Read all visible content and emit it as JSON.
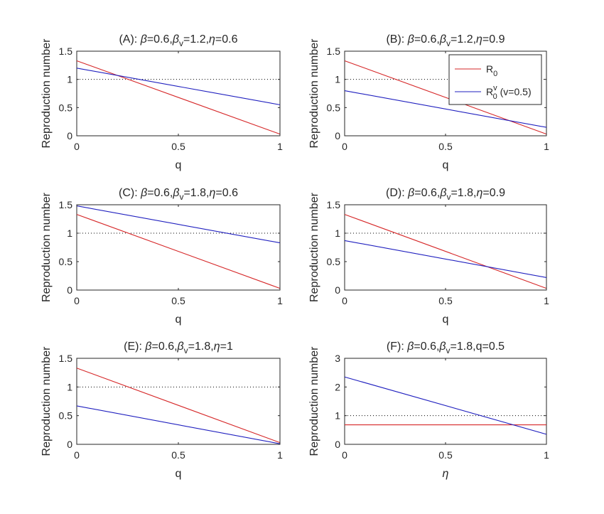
{
  "chart_data": [
    {
      "id": "A",
      "type": "line",
      "title": "(A): β=0.6,β_v=1.2,η=0.6",
      "title_parts": {
        "prefix": "(A): ",
        "beta": "0.6",
        "beta_v": "1.2",
        "last_sym": "η",
        "last_val": "0.6"
      },
      "xlabel": "q",
      "ylabel": "Reproduction number",
      "xlim": [
        0,
        1
      ],
      "ylim": [
        0,
        1.5
      ],
      "xticks": [
        "0",
        "0.5",
        "1"
      ],
      "yticks": [
        "0",
        "0.5",
        "1",
        "1.5"
      ],
      "threshold": 1,
      "series": [
        {
          "name": "R0",
          "color": "#d62728",
          "x": [
            0,
            1
          ],
          "y": [
            1.33,
            0.03
          ]
        },
        {
          "name": "R0v",
          "color": "#1f1fbf",
          "x": [
            0,
            1
          ],
          "y": [
            1.2,
            0.55
          ]
        }
      ]
    },
    {
      "id": "B",
      "type": "line",
      "title": "(B): β=0.6,β_v=1.2,η=0.9",
      "title_parts": {
        "prefix": "(B): ",
        "beta": "0.6",
        "beta_v": "1.2",
        "last_sym": "η",
        "last_val": "0.9"
      },
      "xlabel": "q",
      "ylabel": "Reproduction number",
      "xlim": [
        0,
        1
      ],
      "ylim": [
        0,
        1.5
      ],
      "xticks": [
        "0",
        "0.5",
        "1"
      ],
      "yticks": [
        "0",
        "0.5",
        "1",
        "1.5"
      ],
      "threshold": 1,
      "legend": {
        "placement": "top-right",
        "entries": [
          {
            "main": "R",
            "sub": "0",
            "sup": "",
            "suffix": ""
          },
          {
            "main": "R",
            "sub": "0",
            "sup": "v",
            "suffix": " (v=0.5)"
          }
        ]
      },
      "series": [
        {
          "name": "R0",
          "color": "#d62728",
          "x": [
            0,
            1
          ],
          "y": [
            1.33,
            0.03
          ]
        },
        {
          "name": "R0v",
          "color": "#1f1fbf",
          "x": [
            0,
            1
          ],
          "y": [
            0.8,
            0.15
          ]
        }
      ]
    },
    {
      "id": "C",
      "type": "line",
      "title": "(C): β=0.6,β_v=1.8,η=0.6",
      "title_parts": {
        "prefix": "(C): ",
        "beta": "0.6",
        "beta_v": "1.8",
        "last_sym": "η",
        "last_val": "0.6"
      },
      "xlabel": "q",
      "ylabel": "Reproduction number",
      "xlim": [
        0,
        1
      ],
      "ylim": [
        0,
        1.5
      ],
      "xticks": [
        "0",
        "0.5",
        "1"
      ],
      "yticks": [
        "0",
        "0.5",
        "1",
        "1.5"
      ],
      "threshold": 1,
      "series": [
        {
          "name": "R0",
          "color": "#d62728",
          "x": [
            0,
            1
          ],
          "y": [
            1.33,
            0.03
          ]
        },
        {
          "name": "R0v",
          "color": "#1f1fbf",
          "x": [
            0,
            1
          ],
          "y": [
            1.48,
            0.83
          ]
        }
      ]
    },
    {
      "id": "D",
      "type": "line",
      "title": "(D): β=0.6,β_v=1.8,η=0.9",
      "title_parts": {
        "prefix": "(D): ",
        "beta": "0.6",
        "beta_v": "1.8",
        "last_sym": "η",
        "last_val": "0.9"
      },
      "xlabel": "q",
      "ylabel": "Reproduction number",
      "xlim": [
        0,
        1
      ],
      "ylim": [
        0,
        1.5
      ],
      "xticks": [
        "0",
        "0.5",
        "1"
      ],
      "yticks": [
        "0",
        "0.5",
        "1",
        "1.5"
      ],
      "threshold": 1,
      "series": [
        {
          "name": "R0",
          "color": "#d62728",
          "x": [
            0,
            1
          ],
          "y": [
            1.33,
            0.03
          ]
        },
        {
          "name": "R0v",
          "color": "#1f1fbf",
          "x": [
            0,
            1
          ],
          "y": [
            0.87,
            0.22
          ]
        }
      ]
    },
    {
      "id": "E",
      "type": "line",
      "title": "(E): β=0.6,β_v=1.8,η=1",
      "title_parts": {
        "prefix": "(E): ",
        "beta": "0.6",
        "beta_v": "1.8",
        "last_sym": "η",
        "last_val": "1"
      },
      "xlabel": "q",
      "ylabel": "Reproduction number",
      "xlim": [
        0,
        1
      ],
      "ylim": [
        0,
        1.5
      ],
      "xticks": [
        "0",
        "0.5",
        "1"
      ],
      "yticks": [
        "0",
        "0.5",
        "1",
        "1.5"
      ],
      "threshold": 1,
      "series": [
        {
          "name": "R0",
          "color": "#d62728",
          "x": [
            0,
            1
          ],
          "y": [
            1.33,
            0.03
          ]
        },
        {
          "name": "R0v",
          "color": "#1f1fbf",
          "x": [
            0,
            1
          ],
          "y": [
            0.67,
            0.01
          ]
        }
      ]
    },
    {
      "id": "F",
      "type": "line",
      "title": "(F): β=0.6,β_v=1.8,q=0.5",
      "title_parts": {
        "prefix": "(F): ",
        "beta": "0.6",
        "beta_v": "1.8",
        "last_sym": "q",
        "last_val": "0.5"
      },
      "xlabel": "η",
      "ylabel": "Reproduction number",
      "xlim": [
        0,
        1
      ],
      "ylim": [
        0,
        3
      ],
      "xticks": [
        "0",
        "0.5",
        "1"
      ],
      "yticks": [
        "0",
        "1",
        "2",
        "3"
      ],
      "threshold": 1,
      "series": [
        {
          "name": "R0",
          "color": "#d62728",
          "x": [
            0,
            1
          ],
          "y": [
            0.68,
            0.68
          ]
        },
        {
          "name": "R0v",
          "color": "#1f1fbf",
          "x": [
            0,
            1
          ],
          "y": [
            2.35,
            0.35
          ]
        }
      ]
    }
  ]
}
